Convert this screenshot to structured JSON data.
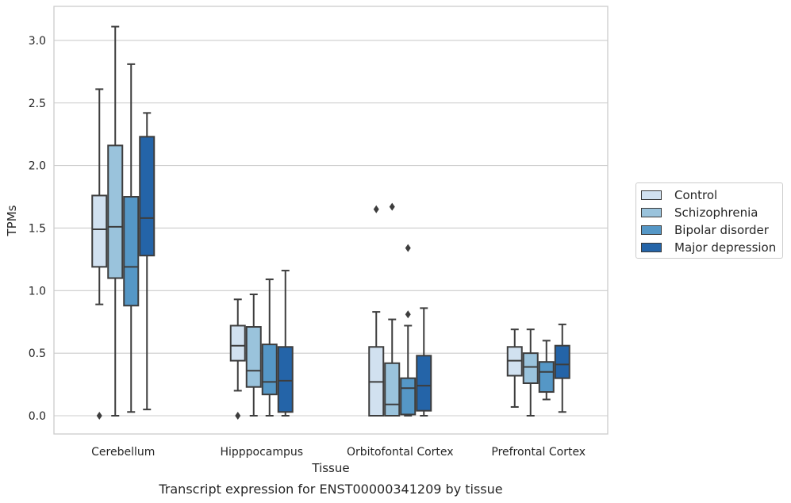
{
  "chart_data": {
    "type": "box",
    "title": "",
    "caption": "Transcript expression for ENST00000341209 by tissue",
    "xlabel": "Tissue",
    "ylabel": "TPMs",
    "ylim": [
      -0.15,
      3.27
    ],
    "yticks": [
      0.0,
      0.5,
      1.0,
      1.5,
      2.0,
      2.5,
      3.0
    ],
    "ytick_labels": [
      "0.0",
      "0.5",
      "1.0",
      "1.5",
      "2.0",
      "2.5",
      "3.0"
    ],
    "grid": "horizontal",
    "legend_position": "right",
    "categories": [
      "Cerebellum",
      "Hipppocampus",
      "Orbitofontal Cortex",
      "Prefrontal Cortex"
    ],
    "series": [
      {
        "name": "Control",
        "color": "#d1e1f0",
        "boxes": [
          {
            "whislo": 0.89,
            "q1": 1.19,
            "med": 1.49,
            "q3": 1.76,
            "whishi": 2.61,
            "fliers": [
              0.0
            ]
          },
          {
            "whislo": 0.2,
            "q1": 0.44,
            "med": 0.56,
            "q3": 0.72,
            "whishi": 0.93,
            "fliers": [
              0.0
            ]
          },
          {
            "whislo": 0.0,
            "q1": 0.0,
            "med": 0.27,
            "q3": 0.55,
            "whishi": 0.83,
            "fliers": [
              1.65
            ]
          },
          {
            "whislo": 0.07,
            "q1": 0.32,
            "med": 0.44,
            "q3": 0.55,
            "whishi": 0.69,
            "fliers": []
          }
        ]
      },
      {
        "name": "Schizophrenia",
        "color": "#9ac3dc",
        "boxes": [
          {
            "whislo": 0.0,
            "q1": 1.1,
            "med": 1.51,
            "q3": 2.16,
            "whishi": 3.11,
            "fliers": []
          },
          {
            "whislo": 0.0,
            "q1": 0.23,
            "med": 0.36,
            "q3": 0.71,
            "whishi": 0.97,
            "fliers": []
          },
          {
            "whislo": 0.0,
            "q1": 0.0,
            "med": 0.09,
            "q3": 0.42,
            "whishi": 0.77,
            "fliers": [
              1.67
            ]
          },
          {
            "whislo": 0.0,
            "q1": 0.26,
            "med": 0.39,
            "q3": 0.5,
            "whishi": 0.69,
            "fliers": []
          }
        ]
      },
      {
        "name": "Bipolar disorder",
        "color": "#5597c6",
        "boxes": [
          {
            "whislo": 0.03,
            "q1": 0.88,
            "med": 1.19,
            "q3": 1.75,
            "whishi": 2.81,
            "fliers": []
          },
          {
            "whislo": 0.0,
            "q1": 0.17,
            "med": 0.27,
            "q3": 0.57,
            "whishi": 1.09,
            "fliers": []
          },
          {
            "whislo": 0.0,
            "q1": 0.01,
            "med": 0.22,
            "q3": 0.3,
            "whishi": 0.72,
            "fliers": [
              0.81,
              1.34
            ]
          },
          {
            "whislo": 0.13,
            "q1": 0.19,
            "med": 0.35,
            "q3": 0.43,
            "whishi": 0.6,
            "fliers": []
          }
        ]
      },
      {
        "name": "Major depression",
        "color": "#2464a8",
        "boxes": [
          {
            "whislo": 0.05,
            "q1": 1.28,
            "med": 1.58,
            "q3": 2.23,
            "whishi": 2.42,
            "fliers": []
          },
          {
            "whislo": 0.0,
            "q1": 0.03,
            "med": 0.28,
            "q3": 0.55,
            "whishi": 1.16,
            "fliers": []
          },
          {
            "whislo": 0.0,
            "q1": 0.04,
            "med": 0.24,
            "q3": 0.48,
            "whishi": 0.86,
            "fliers": []
          },
          {
            "whislo": 0.03,
            "q1": 0.3,
            "med": 0.41,
            "q3": 0.56,
            "whishi": 0.73,
            "fliers": []
          }
        ]
      }
    ]
  }
}
